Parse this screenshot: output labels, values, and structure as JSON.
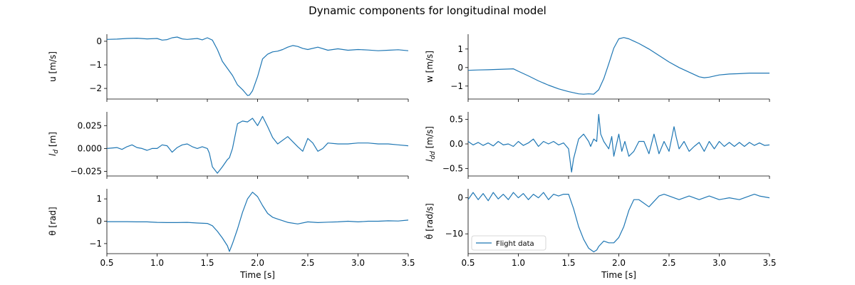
{
  "title": "Dynamic components for longitudinal model",
  "legend": {
    "label": "Flight data",
    "color": "#1f77b4"
  },
  "chart_data": [
    {
      "type": "line",
      "ylabel": "u [m/s]",
      "xlabel": "",
      "xlim": [
        0.5,
        3.5
      ],
      "ylim": [
        -2.45,
        0.3
      ],
      "yticks": [
        0,
        -1,
        -2
      ],
      "ytick_labels": [
        "0",
        "−1",
        "−2"
      ],
      "xticks": [
        0.5,
        1.0,
        1.5,
        2.0,
        2.5,
        3.0,
        3.5
      ],
      "xtick_labels": [],
      "series": [
        {
          "x": [
            0.5,
            0.6,
            0.7,
            0.8,
            0.9,
            1.0,
            1.05,
            1.1,
            1.15,
            1.2,
            1.25,
            1.3,
            1.35,
            1.4,
            1.45,
            1.5,
            1.55,
            1.6,
            1.65,
            1.7,
            1.75,
            1.8,
            1.85,
            1.9,
            1.92,
            1.95,
            2.0,
            2.05,
            2.1,
            2.15,
            2.2,
            2.25,
            2.3,
            2.35,
            2.4,
            2.45,
            2.5,
            2.6,
            2.7,
            2.8,
            2.9,
            3.0,
            3.1,
            3.2,
            3.3,
            3.4,
            3.5
          ],
          "y": [
            0.08,
            0.09,
            0.12,
            0.13,
            0.1,
            0.12,
            0.05,
            0.07,
            0.15,
            0.18,
            0.1,
            0.08,
            0.1,
            0.12,
            0.06,
            0.15,
            0.05,
            -0.35,
            -0.85,
            -1.15,
            -1.45,
            -1.85,
            -2.05,
            -2.3,
            -2.28,
            -2.1,
            -1.5,
            -0.75,
            -0.55,
            -0.45,
            -0.42,
            -0.35,
            -0.25,
            -0.18,
            -0.22,
            -0.3,
            -0.35,
            -0.25,
            -0.38,
            -0.32,
            -0.38,
            -0.35,
            -0.37,
            -0.4,
            -0.38,
            -0.36,
            -0.4
          ]
        }
      ]
    },
    {
      "type": "line",
      "ylabel": "w [m/s]",
      "xlabel": "",
      "xlim": [
        0.5,
        3.5
      ],
      "ylim": [
        -1.7,
        1.8
      ],
      "yticks": [
        1,
        0,
        -1
      ],
      "ytick_labels": [
        "1",
        "0",
        "−1"
      ],
      "xticks": [
        0.5,
        1.0,
        1.5,
        2.0,
        2.5,
        3.0,
        3.5
      ],
      "xtick_labels": [],
      "series": [
        {
          "x": [
            0.5,
            0.6,
            0.7,
            0.8,
            0.9,
            0.95,
            1.0,
            1.1,
            1.2,
            1.3,
            1.4,
            1.5,
            1.6,
            1.65,
            1.7,
            1.75,
            1.8,
            1.85,
            1.9,
            1.95,
            2.0,
            2.05,
            2.1,
            2.2,
            2.3,
            2.4,
            2.5,
            2.6,
            2.7,
            2.8,
            2.85,
            2.9,
            3.0,
            3.1,
            3.2,
            3.3,
            3.4,
            3.5
          ],
          "y": [
            -0.15,
            -0.13,
            -0.12,
            -0.1,
            -0.08,
            -0.07,
            -0.2,
            -0.45,
            -0.72,
            -0.95,
            -1.15,
            -1.3,
            -1.42,
            -1.44,
            -1.42,
            -1.44,
            -1.2,
            -0.6,
            0.2,
            1.05,
            1.55,
            1.62,
            1.55,
            1.3,
            1.0,
            0.65,
            0.3,
            0.0,
            -0.25,
            -0.5,
            -0.55,
            -0.52,
            -0.4,
            -0.35,
            -0.33,
            -0.3,
            -0.3,
            -0.3
          ]
        }
      ]
    },
    {
      "type": "line",
      "ylabel": "l_d [m]",
      "xlabel": "",
      "xlim": [
        0.5,
        3.5
      ],
      "ylim": [
        -0.03,
        0.04
      ],
      "yticks": [
        0.025,
        0.0,
        -0.025
      ],
      "ytick_labels": [
        "0.025",
        "0.000",
        "−0.025"
      ],
      "xticks": [
        0.5,
        1.0,
        1.5,
        2.0,
        2.5,
        3.0,
        3.5
      ],
      "xtick_labels": [],
      "series": [
        {
          "x": [
            0.5,
            0.6,
            0.65,
            0.7,
            0.75,
            0.8,
            0.85,
            0.9,
            0.95,
            1.0,
            1.05,
            1.1,
            1.15,
            1.2,
            1.25,
            1.3,
            1.35,
            1.4,
            1.45,
            1.5,
            1.52,
            1.55,
            1.6,
            1.65,
            1.7,
            1.72,
            1.75,
            1.8,
            1.85,
            1.9,
            1.95,
            2.0,
            2.05,
            2.1,
            2.15,
            2.2,
            2.3,
            2.4,
            2.45,
            2.5,
            2.55,
            2.6,
            2.65,
            2.7,
            2.8,
            2.9,
            3.0,
            3.1,
            3.2,
            3.3,
            3.4,
            3.5
          ],
          "y": [
            0.0,
            0.001,
            -0.001,
            0.002,
            0.004,
            0.001,
            0.0,
            -0.002,
            0.0,
            0.0,
            0.004,
            0.003,
            -0.004,
            0.001,
            0.004,
            0.005,
            0.002,
            0.0,
            0.002,
            0.0,
            -0.005,
            -0.02,
            -0.027,
            -0.02,
            -0.012,
            -0.01,
            0.0,
            0.027,
            0.03,
            0.029,
            0.033,
            0.025,
            0.035,
            0.024,
            0.012,
            0.005,
            0.013,
            0.002,
            -0.003,
            0.011,
            0.006,
            -0.003,
            0.0,
            0.006,
            0.005,
            0.005,
            0.006,
            0.006,
            0.005,
            0.005,
            0.004,
            0.003
          ]
        }
      ]
    },
    {
      "type": "line",
      "ylabel": "l_dd [m/s]",
      "xlabel": "",
      "xlim": [
        0.5,
        3.5
      ],
      "ylim": [
        -0.65,
        0.65
      ],
      "yticks": [
        0.5,
        0.0,
        -0.5
      ],
      "ytick_labels": [
        "0.5",
        "0.0",
        "−0.5"
      ],
      "xticks": [
        0.5,
        1.0,
        1.5,
        2.0,
        2.5,
        3.0,
        3.5
      ],
      "xtick_labels": [],
      "series": [
        {
          "x": [
            0.5,
            0.55,
            0.6,
            0.65,
            0.7,
            0.75,
            0.8,
            0.85,
            0.9,
            0.95,
            1.0,
            1.05,
            1.1,
            1.15,
            1.2,
            1.25,
            1.3,
            1.35,
            1.4,
            1.45,
            1.5,
            1.53,
            1.55,
            1.6,
            1.65,
            1.7,
            1.72,
            1.75,
            1.78,
            1.8,
            1.82,
            1.85,
            1.9,
            1.93,
            1.95,
            2.0,
            2.03,
            2.06,
            2.1,
            2.15,
            2.2,
            2.25,
            2.3,
            2.35,
            2.4,
            2.45,
            2.5,
            2.55,
            2.57,
            2.6,
            2.65,
            2.7,
            2.75,
            2.8,
            2.85,
            2.9,
            2.95,
            3.0,
            3.05,
            3.1,
            3.15,
            3.2,
            3.25,
            3.3,
            3.35,
            3.4,
            3.45,
            3.5
          ],
          "y": [
            0.05,
            -0.02,
            0.03,
            -0.03,
            0.02,
            -0.04,
            0.05,
            -0.02,
            0.0,
            -0.05,
            0.05,
            -0.03,
            0.02,
            0.1,
            -0.05,
            0.05,
            0.0,
            0.05,
            -0.02,
            0.02,
            -0.1,
            -0.57,
            -0.3,
            0.1,
            0.2,
            0.05,
            -0.05,
            0.1,
            0.05,
            0.6,
            0.2,
            0.05,
            -0.1,
            0.15,
            -0.25,
            0.2,
            -0.15,
            0.05,
            -0.25,
            -0.15,
            0.05,
            0.05,
            -0.2,
            0.2,
            -0.2,
            0.05,
            -0.15,
            0.35,
            0.15,
            -0.1,
            0.05,
            -0.15,
            -0.05,
            0.03,
            -0.15,
            0.05,
            -0.1,
            0.05,
            -0.05,
            0.03,
            -0.05,
            0.03,
            -0.05,
            0.03,
            -0.03,
            0.02,
            -0.03,
            -0.02
          ]
        }
      ]
    },
    {
      "type": "line",
      "ylabel": "θ [rad]",
      "xlabel": "Time [s]",
      "xlim": [
        0.5,
        3.5
      ],
      "ylim": [
        -1.45,
        1.45
      ],
      "yticks": [
        1,
        0,
        -1
      ],
      "ytick_labels": [
        "1",
        "0",
        "−1"
      ],
      "xticks": [
        0.5,
        1.0,
        1.5,
        2.0,
        2.5,
        3.0,
        3.5
      ],
      "xtick_labels": [
        "0.5",
        "1.0",
        "1.5",
        "2.0",
        "2.5",
        "3.0",
        "3.5"
      ],
      "series": [
        {
          "x": [
            0.5,
            0.6,
            0.7,
            0.8,
            0.9,
            1.0,
            1.1,
            1.2,
            1.3,
            1.4,
            1.5,
            1.55,
            1.6,
            1.65,
            1.7,
            1.72,
            1.75,
            1.8,
            1.85,
            1.9,
            1.95,
            2.0,
            2.05,
            2.1,
            2.15,
            2.2,
            2.3,
            2.4,
            2.5,
            2.6,
            2.7,
            2.8,
            2.9,
            3.0,
            3.1,
            3.2,
            3.3,
            3.4,
            3.5
          ],
          "y": [
            -0.02,
            -0.02,
            -0.02,
            -0.03,
            -0.03,
            -0.05,
            -0.06,
            -0.06,
            -0.05,
            -0.08,
            -0.1,
            -0.2,
            -0.45,
            -0.75,
            -1.1,
            -1.35,
            -1.0,
            -0.35,
            0.4,
            1.0,
            1.3,
            1.1,
            0.7,
            0.35,
            0.18,
            0.1,
            -0.05,
            -0.12,
            -0.03,
            -0.06,
            -0.04,
            -0.03,
            0.0,
            -0.03,
            0.0,
            0.0,
            0.02,
            0.01,
            0.05
          ]
        }
      ]
    },
    {
      "type": "line",
      "ylabel": "θ̇ [rad/s]",
      "xlabel": "Time [s]",
      "xlim": [
        0.5,
        3.5
      ],
      "ylim": [
        -15.5,
        2.5
      ],
      "yticks": [
        0,
        -10
      ],
      "ytick_labels": [
        "0",
        "−10"
      ],
      "xticks": [
        0.5,
        1.0,
        1.5,
        2.0,
        2.5,
        3.0,
        3.5
      ],
      "xtick_labels": [
        "0.5",
        "1.0",
        "1.5",
        "2.0",
        "2.5",
        "3.0",
        "3.5"
      ],
      "series": [
        {
          "x": [
            0.5,
            0.55,
            0.6,
            0.65,
            0.7,
            0.75,
            0.8,
            0.85,
            0.9,
            0.95,
            1.0,
            1.05,
            1.1,
            1.15,
            1.2,
            1.25,
            1.3,
            1.35,
            1.4,
            1.45,
            1.5,
            1.55,
            1.6,
            1.65,
            1.7,
            1.75,
            1.78,
            1.8,
            1.85,
            1.9,
            1.95,
            2.0,
            2.05,
            2.1,
            2.15,
            2.2,
            2.25,
            2.3,
            2.35,
            2.4,
            2.45,
            2.5,
            2.6,
            2.7,
            2.8,
            2.9,
            3.0,
            3.1,
            3.2,
            3.3,
            3.35,
            3.4,
            3.5
          ],
          "y": [
            -0.5,
            1.5,
            -0.5,
            1.2,
            -0.8,
            1.5,
            -0.3,
            1.0,
            -0.5,
            1.5,
            0.0,
            1.2,
            -0.5,
            1.0,
            0.0,
            1.5,
            -0.5,
            1.0,
            0.5,
            1.0,
            1.0,
            -3.0,
            -8.0,
            -11.5,
            -14.0,
            -15.0,
            -14.5,
            -13.5,
            -12.0,
            -12.5,
            -12.5,
            -11.0,
            -8.0,
            -3.5,
            -0.5,
            -0.5,
            -1.5,
            -2.5,
            -1.0,
            0.5,
            1.0,
            0.5,
            -0.5,
            0.5,
            -0.5,
            0.5,
            -0.5,
            0.0,
            -0.5,
            0.5,
            1.0,
            0.5,
            0.0
          ]
        }
      ]
    }
  ]
}
